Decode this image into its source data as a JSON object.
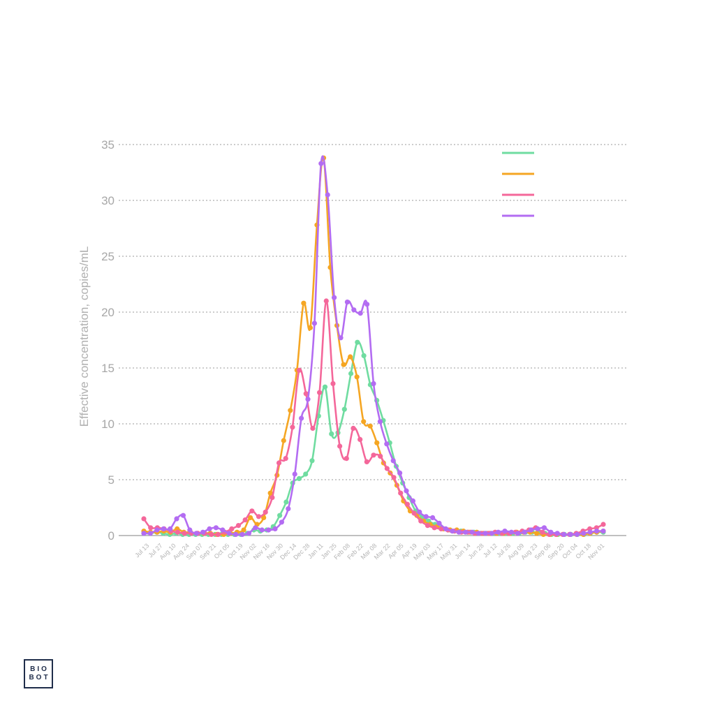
{
  "logo": {
    "line1": "BIO",
    "line2": "BOT"
  },
  "chart_data": {
    "type": "line",
    "ylabel": "Effective concentration, copies/mL",
    "ylim": [
      0,
      35
    ],
    "yticks": [
      0,
      5,
      10,
      15,
      20,
      25,
      30,
      35
    ],
    "grid": true,
    "legend_placement": "top-right",
    "x_tick_labels": [
      "Jul 13",
      "Jul 27",
      "Aug 10",
      "Aug 24",
      "Sep 07",
      "Sep 21",
      "Oct 05",
      "Oct 19",
      "Nov 02",
      "Nov 16",
      "Nov 30",
      "Dec 14",
      "Dec 28",
      "Jan 11",
      "Jan 25",
      "Feb 08",
      "Feb 22",
      "Mar 08",
      "Mar 22",
      "Apr 05",
      "Apr 19",
      "May 03",
      "May 17",
      "May 31",
      "Jun 14",
      "Jun 28",
      "Jul 12",
      "Jul 26",
      "Aug 09",
      "Aug 23",
      "Sep 06",
      "Sep 20",
      "Oct 04",
      "Oct 18",
      "Nov 01"
    ],
    "series": [
      {
        "color": "#6fdca0",
        "values": [
          0.2,
          0.2,
          0.3,
          0.2,
          0.1,
          0.2,
          0.1,
          0.1,
          0.1,
          0.1,
          0.1,
          0.1,
          0.1,
          0.1,
          0.1,
          0.1,
          0.2,
          0.5,
          0.4,
          0.5,
          0.8,
          1.8,
          3.0,
          4.7,
          5.1,
          5.5,
          6.7,
          10.7,
          13.3,
          9.1,
          9.2,
          11.3,
          14.5,
          17.3,
          16.1,
          13.5,
          12.1,
          10.3,
          8.3,
          6.2,
          4.7,
          3.4,
          2.2,
          1.7,
          1.3,
          1.0,
          0.7,
          0.5,
          0.4,
          0.4,
          0.3,
          0.3,
          0.2,
          0.2,
          0.2,
          0.2,
          0.2,
          0.2,
          0.2,
          0.3,
          0.3,
          0.3,
          0.2,
          0.1,
          0.1,
          0.1,
          0.1,
          0.1,
          0.1,
          0.2,
          0.3,
          0.3
        ]
      },
      {
        "color": "#f5a623",
        "values": [
          0.4,
          0.3,
          0.3,
          0.4,
          0.3,
          0.6,
          0.3,
          0.3,
          0.2,
          0.2,
          0.2,
          0.1,
          0.1,
          0.2,
          0.3,
          0.5,
          1.6,
          1.0,
          1.6,
          3.8,
          5.4,
          8.5,
          11.2,
          14.8,
          20.8,
          18.6,
          27.8,
          33.8,
          24.0,
          18.8,
          15.3,
          16.0,
          14.2,
          10.2,
          9.8,
          8.3,
          6.5,
          5.6,
          4.5,
          3.1,
          2.2,
          1.8,
          1.3,
          1.0,
          0.8,
          0.6,
          0.5,
          0.5,
          0.4,
          0.3,
          0.3,
          0.2,
          0.2,
          0.2,
          0.2,
          0.2,
          0.3,
          0.3,
          0.3,
          0.2,
          0.1,
          0.1,
          0.1,
          0.1,
          0.1,
          0.1,
          0.1,
          0.2,
          0.3,
          0.4
        ]
      },
      {
        "color": "#f4679a",
        "values": [
          1.5,
          0.7,
          0.7,
          0.6,
          0.4,
          0.3,
          0.2,
          0.2,
          0.2,
          0.2,
          0.1,
          0.1,
          0.3,
          0.6,
          0.9,
          1.4,
          2.2,
          1.7,
          2.1,
          3.4,
          6.5,
          6.9,
          9.7,
          14.8,
          12.7,
          9.6,
          12.8,
          21.0,
          13.6,
          8.0,
          6.9,
          9.6,
          8.6,
          6.6,
          7.2,
          7.1,
          6.0,
          5.2,
          3.8,
          2.8,
          2.0,
          1.3,
          0.9,
          0.7,
          0.6,
          0.5,
          0.4,
          0.3,
          0.3,
          0.2,
          0.2,
          0.2,
          0.3,
          0.2,
          0.2,
          0.3,
          0.4,
          0.5,
          0.7,
          0.3,
          0.1,
          0.1,
          0.1,
          0.1,
          0.2,
          0.4,
          0.6,
          0.7,
          1.0
        ]
      },
      {
        "color": "#b36cf2",
        "values": [
          0.2,
          0.2,
          0.5,
          0.6,
          0.6,
          1.5,
          1.8,
          0.5,
          0.2,
          0.3,
          0.6,
          0.7,
          0.5,
          0.2,
          0.1,
          0.1,
          0.2,
          0.7,
          0.5,
          0.5,
          0.6,
          1.2,
          2.4,
          5.5,
          10.5,
          12.2,
          19.0,
          33.3,
          30.5,
          21.3,
          17.7,
          20.9,
          20.2,
          19.9,
          20.7,
          13.6,
          10.2,
          8.2,
          6.7,
          5.6,
          4.0,
          3.1,
          2.1,
          1.7,
          1.6,
          1.1,
          0.6,
          0.4,
          0.3,
          0.3,
          0.3,
          0.2,
          0.2,
          0.2,
          0.3,
          0.4,
          0.3,
          0.2,
          0.3,
          0.5,
          0.6,
          0.7,
          0.3,
          0.2,
          0.1,
          0.1,
          0.1,
          0.2,
          0.3,
          0.4,
          0.4
        ]
      }
    ]
  }
}
